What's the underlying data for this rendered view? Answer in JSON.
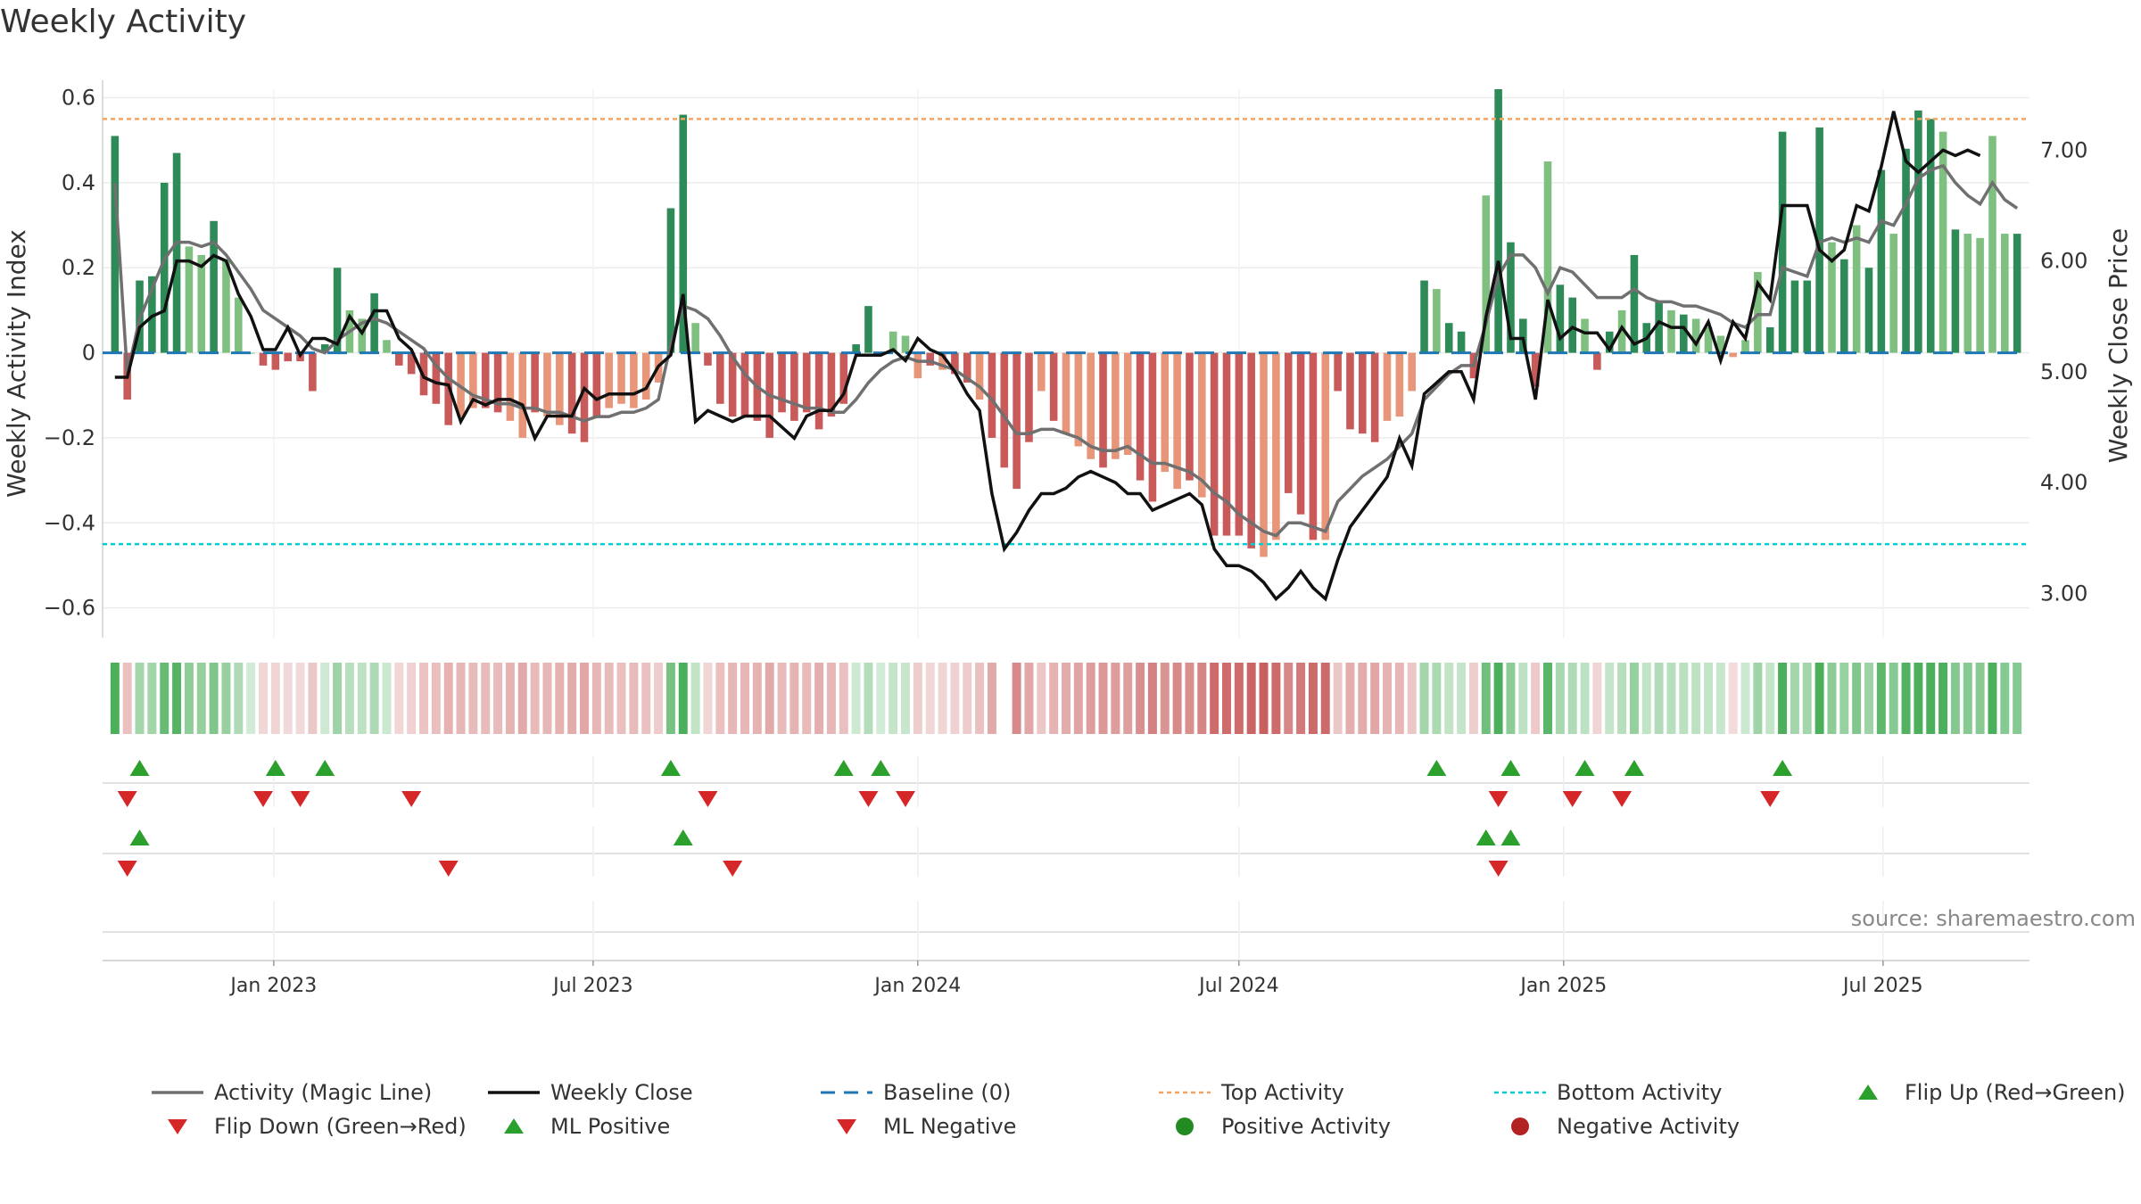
{
  "title": "Weekly Activity",
  "source": "source: sharemaestro.com",
  "colors": {
    "strong_green": "#2e8b57",
    "light_green": "#7fbf7f",
    "strong_red": "#c85a5a",
    "light_red": "#e8967a",
    "magic_line": "#707070",
    "close": "#111111",
    "baseline": "#1f77b4",
    "top": "#f4a460",
    "bottom": "#00ced1",
    "flip_up": "#2ca02c",
    "flip_down": "#d62728",
    "pos_dot": "#228b22",
    "neg_dot": "#b22222"
  },
  "chart_data": {
    "type": "bar",
    "x_start": "2022-10-03",
    "x_step_days": 7,
    "x_range": [
      "2022-09-26",
      "2025-09-22"
    ],
    "xticks": [
      {
        "label": "Jan 2023",
        "date": "2023-01-01"
      },
      {
        "label": "Jul 2023",
        "date": "2023-07-01"
      },
      {
        "label": "Jan 2024",
        "date": "2024-01-01"
      },
      {
        "label": "Jul 2024",
        "date": "2024-07-01"
      },
      {
        "label": "Jan 2025",
        "date": "2025-01-01"
      },
      {
        "label": "Jul 2025",
        "date": "2025-07-01"
      }
    ],
    "left_axis": {
      "label": "Weekly Activity Index",
      "ylim": [
        -0.67,
        0.62
      ],
      "ticks": [
        {
          "v": 0.6,
          "t": "0.6"
        },
        {
          "v": 0.4,
          "t": "0.4"
        },
        {
          "v": 0.2,
          "t": "0.2"
        },
        {
          "v": 0,
          "t": "0"
        },
        {
          "v": -0.2,
          "t": "−0.2"
        },
        {
          "v": -0.4,
          "t": "−0.4"
        },
        {
          "v": -0.6,
          "t": "−0.6"
        }
      ]
    },
    "right_axis": {
      "label": "Weekly Close Price",
      "ylim": [
        2.6,
        7.55
      ],
      "ticks": [
        {
          "v": 7.0,
          "t": "7.00"
        },
        {
          "v": 6.0,
          "t": "6.00"
        },
        {
          "v": 5.0,
          "t": "5.00"
        },
        {
          "v": 4.0,
          "t": "4.00"
        },
        {
          "v": 3.0,
          "t": "3.00"
        }
      ]
    },
    "top_activity": 0.55,
    "bottom_activity": -0.45,
    "baseline": 0,
    "series": [
      {
        "name": "Weekly Activity",
        "values": [
          0.51,
          -0.11,
          0.17,
          0.18,
          0.4,
          0.47,
          0.25,
          0.23,
          0.31,
          0.22,
          0.13,
          0.0,
          -0.03,
          -0.04,
          -0.02,
          -0.02,
          -0.09,
          0.02,
          0.2,
          0.1,
          0.08,
          0.14,
          0.03,
          -0.03,
          -0.05,
          -0.1,
          -0.12,
          -0.17,
          -0.15,
          -0.13,
          -0.13,
          -0.14,
          -0.16,
          -0.2,
          -0.14,
          -0.15,
          -0.17,
          -0.19,
          -0.21,
          -0.15,
          -0.13,
          -0.12,
          -0.13,
          -0.11,
          -0.07,
          0.34,
          0.56,
          0.07,
          -0.03,
          -0.12,
          -0.15,
          -0.15,
          -0.16,
          -0.2,
          -0.14,
          -0.16,
          -0.14,
          -0.18,
          -0.15,
          -0.12,
          0.02,
          0.11,
          0.0,
          0.05,
          0.04,
          -0.06,
          -0.03,
          -0.04,
          -0.05,
          -0.07,
          -0.11,
          -0.2,
          -0.27,
          -0.32,
          -0.21,
          -0.09,
          -0.16,
          -0.19,
          -0.22,
          -0.25,
          -0.27,
          -0.25,
          -0.24,
          -0.3,
          -0.35,
          -0.28,
          -0.32,
          -0.3,
          -0.34,
          -0.43,
          -0.43,
          -0.43,
          -0.46,
          -0.48,
          -0.44,
          -0.33,
          -0.38,
          -0.44,
          -0.44,
          -0.09,
          -0.18,
          -0.19,
          -0.21,
          -0.16,
          -0.15,
          -0.09,
          0.17,
          0.15,
          0.07,
          0.05,
          -0.06,
          0.37,
          0.62,
          0.26,
          0.08,
          -0.08,
          0.45,
          0.16,
          0.13,
          0.08,
          -0.04,
          0.05,
          0.1,
          0.23,
          0.07,
          0.12,
          0.1,
          0.09,
          0.08,
          0.06,
          0.04,
          -0.01,
          0.03,
          0.19,
          0.06,
          0.52,
          0.17,
          0.17,
          0.53,
          0.26,
          0.22,
          0.3,
          0.2,
          0.43,
          0.28,
          0.48,
          0.57,
          0.55,
          0.52,
          0.29,
          0.28,
          0.27,
          0.51,
          0.28,
          0.28
        ],
        "flags": "SSSSSSLLSLLXSSSSSSSLLSLSSSSSLLSSLLSLLSSSLLLLLSSLSSSSSSSSSSSSSSLLLLSLSSLSSSSLSLLLSLLSSLLSLSSSSLLSSSLSSSSLLLSLSSSLSSSSLSSLSSLSSSLSLLLLLLSSSSSLSLSSLSSSLSLLLLSLLL"
      },
      {
        "name": "Activity (Magic Line)",
        "values": [
          0.4,
          -0.05,
          0.08,
          0.15,
          0.22,
          0.26,
          0.26,
          0.25,
          0.26,
          0.23,
          0.19,
          0.15,
          0.1,
          0.08,
          0.06,
          0.04,
          0.01,
          0.0,
          0.03,
          0.05,
          0.07,
          0.08,
          0.07,
          0.05,
          0.03,
          0.01,
          -0.03,
          -0.06,
          -0.08,
          -0.1,
          -0.11,
          -0.12,
          -0.12,
          -0.13,
          -0.13,
          -0.14,
          -0.14,
          -0.15,
          -0.16,
          -0.15,
          -0.15,
          -0.14,
          -0.14,
          -0.13,
          -0.11,
          0.02,
          0.11,
          0.1,
          0.08,
          0.04,
          -0.01,
          -0.05,
          -0.08,
          -0.1,
          -0.11,
          -0.12,
          -0.13,
          -0.13,
          -0.14,
          -0.14,
          -0.11,
          -0.07,
          -0.04,
          -0.02,
          -0.01,
          -0.02,
          -0.02,
          -0.03,
          -0.04,
          -0.06,
          -0.08,
          -0.11,
          -0.15,
          -0.19,
          -0.19,
          -0.18,
          -0.18,
          -0.19,
          -0.2,
          -0.22,
          -0.23,
          -0.23,
          -0.22,
          -0.24,
          -0.26,
          -0.26,
          -0.27,
          -0.28,
          -0.3,
          -0.33,
          -0.35,
          -0.38,
          -0.4,
          -0.42,
          -0.43,
          -0.4,
          -0.4,
          -0.41,
          -0.42,
          -0.35,
          -0.32,
          -0.29,
          -0.27,
          -0.25,
          -0.22,
          -0.19,
          -0.11,
          -0.08,
          -0.05,
          -0.03,
          -0.03,
          0.07,
          0.18,
          0.23,
          0.23,
          0.2,
          0.14,
          0.2,
          0.19,
          0.16,
          0.13,
          0.13,
          0.13,
          0.15,
          0.13,
          0.12,
          0.12,
          0.11,
          0.11,
          0.1,
          0.09,
          0.07,
          0.06,
          0.09,
          0.09,
          0.2,
          0.19,
          0.18,
          0.26,
          0.27,
          0.26,
          0.27,
          0.26,
          0.31,
          0.3,
          0.35,
          0.41,
          0.43,
          0.44,
          0.4,
          0.37,
          0.35,
          0.4,
          0.36,
          0.34
        ]
      },
      {
        "name": "Weekly Close",
        "values": [
          4.95,
          4.95,
          5.4,
          5.5,
          5.55,
          6.0,
          6.0,
          5.95,
          6.05,
          6.0,
          5.7,
          5.5,
          5.2,
          5.2,
          5.4,
          5.15,
          5.3,
          5.3,
          5.25,
          5.5,
          5.35,
          5.55,
          5.55,
          5.3,
          5.2,
          4.95,
          4.9,
          4.88,
          4.55,
          4.75,
          4.7,
          4.75,
          4.75,
          4.7,
          4.4,
          4.6,
          4.6,
          4.6,
          4.85,
          4.75,
          4.8,
          4.8,
          4.8,
          4.85,
          5.05,
          5.15,
          5.7,
          4.55,
          4.65,
          4.6,
          4.55,
          4.6,
          4.6,
          4.6,
          4.5,
          4.4,
          4.6,
          4.65,
          4.65,
          4.8,
          5.15,
          5.15,
          5.15,
          5.2,
          5.1,
          5.3,
          5.2,
          5.15,
          5.0,
          4.8,
          4.65,
          3.9,
          3.4,
          3.55,
          3.75,
          3.9,
          3.9,
          3.95,
          4.05,
          4.1,
          4.05,
          4.0,
          3.9,
          3.9,
          3.75,
          3.8,
          3.85,
          3.9,
          3.8,
          3.4,
          3.25,
          3.25,
          3.2,
          3.1,
          2.95,
          3.05,
          3.2,
          3.05,
          2.95,
          3.3,
          3.6,
          3.75,
          3.9,
          4.05,
          4.4,
          4.15,
          4.8,
          4.9,
          5.0,
          5.0,
          4.75,
          5.5,
          6.0,
          5.3,
          5.3,
          4.75,
          5.65,
          5.3,
          5.4,
          5.35,
          5.35,
          5.2,
          5.4,
          5.25,
          5.3,
          5.45,
          5.4,
          5.4,
          5.25,
          5.45,
          5.1,
          5.45,
          5.3,
          5.8,
          5.65,
          6.5,
          6.5,
          6.5,
          6.1,
          6.0,
          6.1,
          6.5,
          6.45,
          6.85,
          7.35,
          6.9,
          6.8,
          6.9,
          7.0,
          6.95,
          7.0,
          6.95
        ]
      },
      {
        "name": "Flip Up (Red→Green)",
        "weeks": [
          2,
          13,
          17,
          45,
          59,
          62,
          107,
          113,
          119,
          123,
          135
        ]
      },
      {
        "name": "Flip Down (Green→Red)",
        "weeks": [
          1,
          12,
          15,
          24,
          48,
          61,
          64,
          112,
          118,
          122,
          134
        ]
      },
      {
        "name": "ML Positive",
        "weeks": [
          2,
          46,
          111,
          113
        ]
      },
      {
        "name": "ML Negative",
        "weeks": [
          1,
          27,
          50,
          112
        ]
      }
    ],
    "strip_gaps": [
      72
    ],
    "legend": [
      {
        "key": "magic",
        "label": "Activity (Magic Line)"
      },
      {
        "key": "close",
        "label": "Weekly Close"
      },
      {
        "key": "baseline",
        "label": "Baseline (0)"
      },
      {
        "key": "top",
        "label": "Top Activity"
      },
      {
        "key": "bottom",
        "label": "Bottom Activity"
      },
      {
        "key": "flipup",
        "label": "Flip Up (Red→Green)"
      },
      {
        "key": "flipdown",
        "label": "Flip Down (Green→Red)"
      },
      {
        "key": "mlpos",
        "label": "ML Positive"
      },
      {
        "key": "mlneg",
        "label": "ML Negative"
      },
      {
        "key": "posdot",
        "label": "Positive Activity"
      },
      {
        "key": "negdot",
        "label": "Negative Activity"
      }
    ]
  }
}
